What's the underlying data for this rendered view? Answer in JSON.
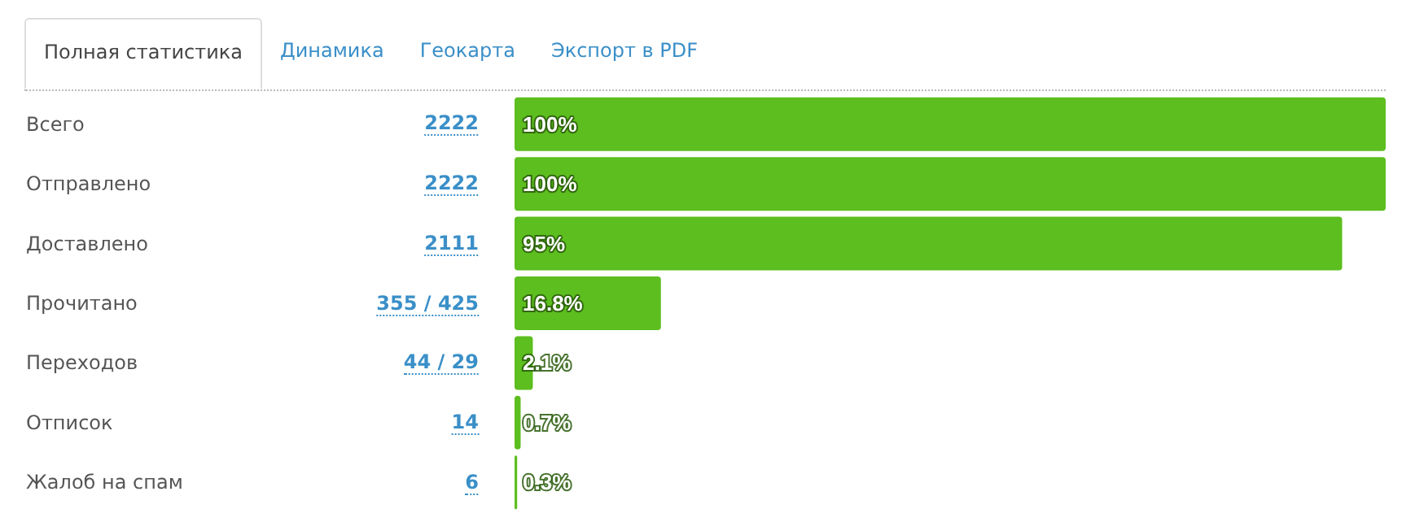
{
  "chart_data": {
    "type": "bar",
    "orientation": "horizontal",
    "color": "#5dbe1f",
    "categories": [
      "Всего",
      "Отправлено",
      "Доставлено",
      "Прочитано",
      "Переходов",
      "Отписок",
      "Жалоб на спам"
    ],
    "values": [
      100,
      100,
      95,
      16.8,
      2.1,
      0.7,
      0.3
    ],
    "value_labels": [
      "100%",
      "100%",
      "95%",
      "16.8%",
      "2.1%",
      "0.7%",
      "0.3%"
    ],
    "annotations": [
      "Полная статистика",
      "Динамика",
      "Геокарта",
      "Экспорт в PDF",
      "2222",
      "2222",
      "2111",
      "355 / 425",
      "44 / 29",
      "14",
      "6"
    ],
    "grid": false
  }
}
